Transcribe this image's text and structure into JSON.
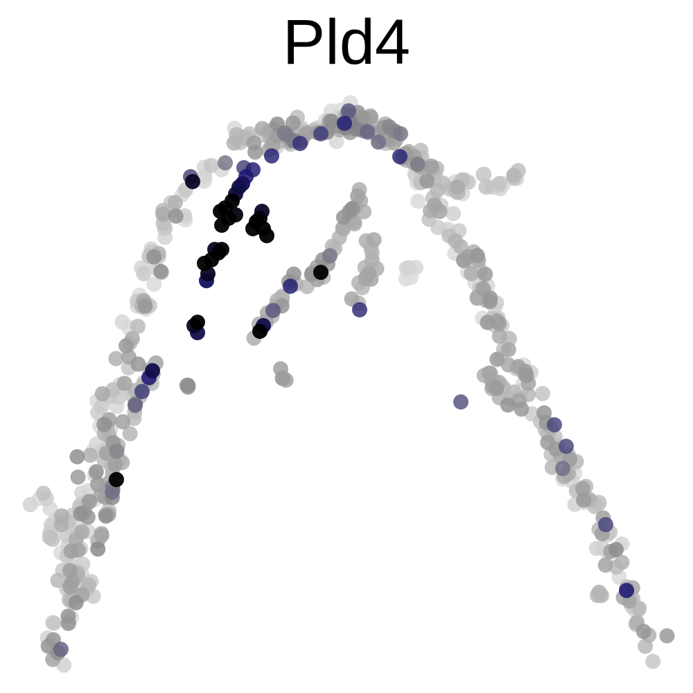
{
  "chart_data": {
    "type": "scatter",
    "title": "Pld4",
    "xlabel": "",
    "ylabel": "",
    "axes_visible": false,
    "grid": false,
    "legend": "none",
    "xlim": [
      0,
      1000
    ],
    "ylim": [
      0,
      1000
    ],
    "color_scale": {
      "low": "#dcdcdc",
      "mid": "#8c8c8c",
      "high_blue": "#1a1570",
      "max": "#000000"
    },
    "bands": [
      {
        "id": "left-arm",
        "path": [
          [
            80,
            950
          ],
          [
            95,
            880
          ],
          [
            110,
            800
          ],
          [
            125,
            720
          ],
          [
            150,
            640
          ],
          [
            170,
            560
          ],
          [
            190,
            480
          ],
          [
            215,
            400
          ],
          [
            240,
            330
          ],
          [
            270,
            270
          ],
          [
            310,
            225
          ],
          [
            360,
            200
          ],
          [
            420,
            190
          ],
          [
            470,
            185
          ],
          [
            510,
            165
          ]
        ],
        "n": 160,
        "spread": 22,
        "levels": [
          0.0,
          0.55
        ]
      },
      {
        "id": "left-inner-arm",
        "path": [
          [
            140,
            800
          ],
          [
            150,
            730
          ],
          [
            165,
            670
          ],
          [
            185,
            610
          ],
          [
            205,
            560
          ],
          [
            225,
            530
          ]
        ],
        "n": 40,
        "spread": 14,
        "levels": [
          0.2,
          0.6
        ]
      },
      {
        "id": "top-ridge",
        "path": [
          [
            360,
            200
          ],
          [
            420,
            195
          ],
          [
            480,
            185
          ],
          [
            520,
            170
          ],
          [
            560,
            200
          ],
          [
            600,
            230
          ],
          [
            630,
            250
          ]
        ],
        "n": 90,
        "spread": 16,
        "levels": [
          0.2,
          0.6
        ]
      },
      {
        "id": "right-branch",
        "path": [
          [
            600,
            250
          ],
          [
            650,
            270
          ],
          [
            700,
            265
          ],
          [
            745,
            255
          ]
        ],
        "n": 35,
        "spread": 14,
        "levels": [
          0.0,
          0.35
        ]
      },
      {
        "id": "right-arm",
        "path": [
          [
            620,
            280
          ],
          [
            650,
            330
          ],
          [
            680,
            380
          ],
          [
            710,
            440
          ],
          [
            730,
            500
          ],
          [
            760,
            560
          ],
          [
            790,
            620
          ],
          [
            820,
            680
          ],
          [
            850,
            730
          ],
          [
            880,
            790
          ],
          [
            905,
            850
          ],
          [
            930,
            900
          ],
          [
            945,
            920
          ]
        ],
        "n": 150,
        "spread": 18,
        "levels": [
          0.0,
          0.5
        ]
      },
      {
        "id": "mid-branch-a",
        "path": [
          [
            520,
            280
          ],
          [
            500,
            330
          ],
          [
            480,
            370
          ],
          [
            455,
            395
          ],
          [
            425,
            410
          ],
          [
            400,
            440
          ],
          [
            380,
            470
          ],
          [
            370,
            490
          ]
        ],
        "n": 45,
        "spread": 12,
        "levels": [
          0.25,
          0.55
        ]
      },
      {
        "id": "mid-branch-b",
        "path": [
          [
            540,
            350
          ],
          [
            530,
            390
          ],
          [
            520,
            420
          ],
          [
            515,
            440
          ]
        ],
        "n": 15,
        "spread": 10,
        "levels": [
          0.25,
          0.45
        ]
      },
      {
        "id": "mid-branch-c",
        "path": [
          [
            590,
            370
          ],
          [
            595,
            400
          ]
        ],
        "n": 6,
        "spread": 8,
        "levels": [
          0.0,
          0.1
        ]
      },
      {
        "id": "right-lower-cluster",
        "path": [
          [
            700,
            540
          ],
          [
            720,
            560
          ],
          [
            740,
            580
          ],
          [
            760,
            580
          ]
        ],
        "n": 16,
        "spread": 12,
        "levels": [
          0.25,
          0.5
        ]
      },
      {
        "id": "left-lower-cluster",
        "path": [
          [
            60,
            720
          ],
          [
            90,
            760
          ],
          [
            100,
            820
          ],
          [
            120,
            860
          ]
        ],
        "n": 40,
        "spread": 20,
        "levels": [
          0.0,
          0.45
        ]
      },
      {
        "id": "small-spot-a",
        "path": [
          [
            405,
            540
          ],
          [
            410,
            548
          ]
        ],
        "n": 4,
        "spread": 6,
        "levels": [
          0.35,
          0.45
        ]
      },
      {
        "id": "small-spot-b",
        "path": [
          [
            270,
            555
          ],
          [
            275,
            558
          ]
        ],
        "n": 3,
        "spread": 4,
        "levels": [
          0.5,
          0.55
        ]
      },
      {
        "id": "small-spot-c",
        "path": [
          [
            860,
            855
          ],
          [
            875,
            860
          ]
        ],
        "n": 4,
        "spread": 6,
        "levels": [
          0.2,
          0.3
        ]
      }
    ],
    "highlights": [
      [
        325,
        300,
        1.0
      ],
      [
        330,
        315,
        1.0
      ],
      [
        320,
        325,
        1.0
      ],
      [
        335,
        290,
        1.0
      ],
      [
        340,
        310,
        0.98
      ],
      [
        318,
        305,
        1.0
      ],
      [
        345,
        270,
        0.9
      ],
      [
        355,
        255,
        0.85
      ],
      [
        350,
        265,
        0.88
      ],
      [
        365,
        245,
        0.82
      ],
      [
        340,
        280,
        0.92
      ],
      [
        370,
        320,
        1.0
      ],
      [
        380,
        330,
        1.0
      ],
      [
        375,
        315,
        0.98
      ],
      [
        385,
        340,
        1.0
      ],
      [
        378,
        305,
        0.95
      ],
      [
        365,
        330,
        1.0
      ],
      [
        295,
        380,
        1.0
      ],
      [
        305,
        375,
        1.0
      ],
      [
        300,
        395,
        0.95
      ],
      [
        315,
        365,
        0.98
      ],
      [
        320,
        360,
        1.0
      ],
      [
        310,
        360,
        0.96
      ],
      [
        298,
        405,
        0.88
      ],
      [
        285,
        465,
        1.0
      ],
      [
        280,
        470,
        0.95
      ],
      [
        285,
        480,
        0.9
      ],
      [
        375,
        478,
        1.0
      ],
      [
        380,
        470,
        0.9
      ],
      [
        220,
        535,
        0.9
      ],
      [
        215,
        545,
        0.85
      ],
      [
        205,
        565,
        0.75
      ],
      [
        195,
        585,
        0.65
      ],
      [
        168,
        692,
        1.0
      ],
      [
        162,
        710,
        0.62
      ],
      [
        278,
        262,
        0.95
      ],
      [
        275,
        255,
        0.72
      ],
      [
        325,
        235,
        0.6
      ],
      [
        352,
        242,
        0.72
      ],
      [
        392,
        225,
        0.8
      ],
      [
        433,
        207,
        0.78
      ],
      [
        463,
        193,
        0.75
      ],
      [
        497,
        178,
        0.82
      ],
      [
        503,
        160,
        0.68
      ],
      [
        530,
        190,
        0.65
      ],
      [
        546,
        205,
        0.62
      ],
      [
        577,
        226,
        0.8
      ],
      [
        578,
        193,
        0.6
      ],
      [
        463,
        393,
        1.0
      ],
      [
        419,
        413,
        0.82
      ],
      [
        476,
        369,
        0.6
      ],
      [
        394,
        448,
        0.68
      ],
      [
        519,
        447,
        0.78
      ],
      [
        665,
        580,
        0.68
      ],
      [
        800,
        613,
        0.72
      ],
      [
        817,
        644,
        0.72
      ],
      [
        812,
        676,
        0.62
      ],
      [
        874,
        757,
        0.72
      ],
      [
        889,
        793,
        0.55
      ],
      [
        904,
        852,
        0.85
      ],
      [
        88,
        937,
        0.65
      ],
      [
        162,
        718,
        0.55
      ]
    ]
  }
}
